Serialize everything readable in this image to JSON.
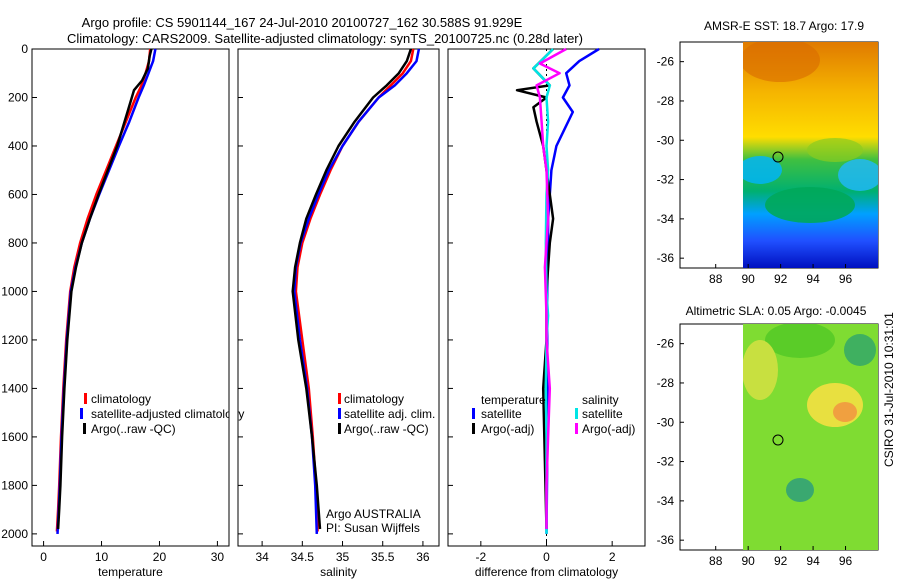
{
  "title_line1": "Argo profile: CS 5901144_167 24-Jul-2010 20100727_162 30.588S 91.929E",
  "title_line2": "Climatology: CARS2009. Satellite-adjusted climatology: synTS_20100725.nc (0.28d later)",
  "side_label": "CSIRO 31-Jul-2010 10:31:01",
  "colors": {
    "climatology": "#ff0000",
    "satellite": "#0000ff",
    "argo": "#000000",
    "cyan": "#00e5e5",
    "magenta": "#ff00ff"
  },
  "chart_data": [
    {
      "id": "temperature",
      "type": "line",
      "xlabel": "temperature",
      "xlim": [
        -2,
        32
      ],
      "ylim": [
        2050,
        0
      ],
      "xticks": [
        0,
        10,
        20,
        30
      ],
      "yticks": [
        0,
        200,
        400,
        600,
        800,
        1000,
        1200,
        1400,
        1600,
        1800,
        2000
      ],
      "legend": [
        "climatology",
        "satellite-adjusted climatology",
        "Argo(..raw -QC)"
      ],
      "series": [
        {
          "name": "climatology",
          "color": "#ff0000",
          "x": [
            18.4,
            18.2,
            17.6,
            16.9,
            15.9,
            14.2,
            12.5,
            10.8,
            9.1,
            7.6,
            6.3,
            5.3,
            4.6,
            3.9,
            3.4,
            3.0,
            2.7,
            2.5,
            2.3
          ],
          "y": [
            0,
            50,
            100,
            150,
            200,
            300,
            400,
            500,
            600,
            700,
            800,
            900,
            1000,
            1200,
            1400,
            1600,
            1800,
            1900,
            1990
          ]
        },
        {
          "name": "satellite",
          "color": "#0000ff",
          "x": [
            19.3,
            18.9,
            18.1,
            17.3,
            16.4,
            14.8,
            13.0,
            11.3,
            9.6,
            8.0,
            6.6,
            5.5,
            4.7,
            4.0,
            3.5,
            3.1,
            2.8,
            2.6,
            2.4
          ],
          "y": [
            0,
            50,
            100,
            150,
            200,
            300,
            400,
            500,
            600,
            700,
            800,
            900,
            1000,
            1200,
            1400,
            1600,
            1800,
            1900,
            2000
          ]
        },
        {
          "name": "argo",
          "color": "#000000",
          "x": [
            18.6,
            18.3,
            18.0,
            17.0,
            15.6,
            14.6,
            12.7,
            11.1,
            9.5,
            8.0,
            6.6,
            5.6,
            4.8,
            4.1,
            3.6,
            3.2,
            2.9,
            2.7,
            2.5
          ],
          "y": [
            0,
            30,
            80,
            130,
            170,
            250,
            400,
            500,
            600,
            700,
            800,
            900,
            1000,
            1200,
            1400,
            1600,
            1800,
            1900,
            1980
          ]
        }
      ]
    },
    {
      "id": "salinity",
      "type": "line",
      "xlabel": "salinity",
      "xlim": [
        33.7,
        36.2
      ],
      "ylim": [
        2050,
        0
      ],
      "xticks": [
        34,
        34.5,
        35,
        35.5,
        36
      ],
      "legend": [
        "climatology",
        "satellite adj. clim.",
        "Argo(..raw -QC)"
      ],
      "annotation": [
        "Argo AUSTRALIA",
        "PI: Susan Wijffels"
      ],
      "series": [
        {
          "name": "climatology",
          "color": "#ff0000",
          "x": [
            35.88,
            35.85,
            35.75,
            35.6,
            35.45,
            35.2,
            35.0,
            34.85,
            34.72,
            34.6,
            34.5,
            34.44,
            34.42,
            34.5,
            34.58,
            34.63,
            34.67,
            34.69
          ],
          "y": [
            0,
            50,
            100,
            150,
            200,
            300,
            400,
            500,
            600,
            700,
            800,
            900,
            1000,
            1200,
            1400,
            1600,
            1800,
            1990
          ]
        },
        {
          "name": "satellite",
          "color": "#0000ff",
          "x": [
            35.95,
            35.92,
            35.8,
            35.65,
            35.45,
            35.2,
            35.0,
            34.83,
            34.7,
            34.58,
            34.48,
            34.42,
            34.4,
            34.47,
            34.56,
            34.62,
            34.66,
            34.68
          ],
          "y": [
            0,
            50,
            100,
            150,
            200,
            300,
            400,
            500,
            600,
            700,
            800,
            900,
            1000,
            1200,
            1400,
            1600,
            1800,
            2000
          ]
        },
        {
          "name": "argo",
          "color": "#000000",
          "x": [
            35.85,
            35.8,
            35.7,
            35.55,
            35.38,
            35.15,
            34.95,
            34.8,
            34.67,
            34.55,
            34.47,
            34.41,
            34.38,
            34.45,
            34.55,
            34.62,
            34.68,
            34.72
          ],
          "y": [
            0,
            50,
            100,
            150,
            200,
            300,
            400,
            500,
            600,
            700,
            800,
            900,
            1000,
            1200,
            1400,
            1600,
            1800,
            1980
          ]
        }
      ]
    },
    {
      "id": "difference",
      "type": "line",
      "xlabel": "difference from climatology",
      "xlim": [
        -3,
        3
      ],
      "ylim": [
        2050,
        0
      ],
      "xticks": [
        -2,
        0,
        2
      ],
      "legend_temperature": {
        "title": "temperature",
        "items": [
          "satellite",
          "Argo(-adj)"
        ]
      },
      "legend_salinity": {
        "title": "salinity",
        "items": [
          "satellite",
          "Argo(-adj)"
        ]
      },
      "series": [
        {
          "name": "temperature satellite",
          "color": "#0000ff",
          "x": [
            1.6,
            1.0,
            0.6,
            0.7,
            0.5,
            0.8,
            0.3,
            0.15,
            0.1,
            0.05,
            0.05,
            0.02,
            0.02,
            0.03,
            0.02,
            0.0
          ],
          "y": [
            0,
            50,
            100,
            150,
            200,
            260,
            400,
            500,
            600,
            700,
            800,
            1000,
            1200,
            1400,
            1700,
            2000
          ]
        },
        {
          "name": "temperature Argo(-adj)",
          "color": "#000000",
          "x": [
            0.2,
            -0.4,
            0.1,
            -0.9,
            0.0,
            -0.4,
            -0.3,
            -0.1,
            0.0,
            0.2,
            0.1,
            0.0,
            0.0,
            -0.1,
            -0.05,
            0.0
          ],
          "y": [
            0,
            80,
            150,
            170,
            200,
            240,
            300,
            400,
            500,
            700,
            800,
            1000,
            1200,
            1400,
            1700,
            1980
          ]
        },
        {
          "name": "salinity satellite",
          "color": "#00e5e5",
          "x": [
            0.2,
            -0.4,
            0.1,
            0.0,
            0.05,
            0.0,
            0.05,
            0.0,
            -0.02,
            0.0,
            0.05,
            0.0,
            -0.02,
            0.0,
            0.0,
            0.0
          ],
          "y": [
            0,
            80,
            150,
            200,
            300,
            400,
            500,
            600,
            800,
            1000,
            1100,
            1200,
            1400,
            1600,
            1800,
            2000
          ]
        },
        {
          "name": "salinity Argo(-adj)",
          "color": "#ff00ff",
          "x": [
            0.6,
            -0.2,
            0.4,
            -0.3,
            -0.2,
            -0.15,
            -0.1,
            0.0,
            0.05,
            -0.05,
            0.0,
            0.0,
            0.1,
            0.05,
            0.0,
            0.0
          ],
          "y": [
            0,
            60,
            100,
            150,
            200,
            300,
            400,
            500,
            700,
            900,
            1100,
            1200,
            1400,
            1600,
            1800,
            1980
          ]
        }
      ]
    }
  ],
  "map_top": {
    "title": "AMSR-E SST: 18.7 Argo: 17.9",
    "yticks": [
      -26,
      -28,
      -30,
      -32,
      -34,
      -36
    ],
    "xticks": [
      88,
      90,
      92,
      94,
      96
    ]
  },
  "map_bottom": {
    "title": "Altimetric SLA: 0.05 Argo: -0.0045",
    "yticks": [
      -26,
      -28,
      -30,
      -32,
      -34,
      -36
    ],
    "xticks": [
      88,
      90,
      92,
      94,
      96
    ]
  }
}
